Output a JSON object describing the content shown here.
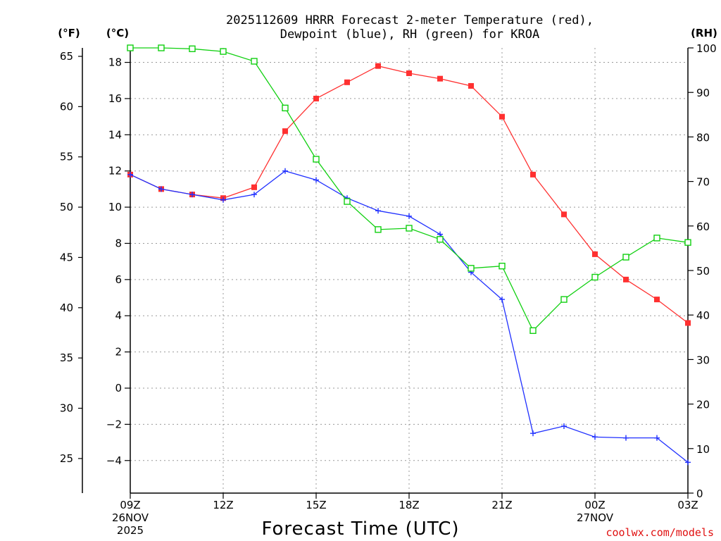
{
  "chart_data": {
    "type": "line",
    "title_line1": "2025112609 HRRR Forecast 2-meter Temperature (red),",
    "title_line2": "Dewpoint (blue), RH (green) for KROA",
    "xlabel": "Forecast Time (UTC)",
    "credit": "coolwx.com/models",
    "axis_heads": {
      "fahrenheit": "(°F)",
      "celsius": "(°C)",
      "rh": "(RH)"
    },
    "x_ticks": [
      {
        "hour": 0,
        "label": "09Z",
        "sub1": "26NOV",
        "sub2": "2025"
      },
      {
        "hour": 3,
        "label": "12Z"
      },
      {
        "hour": 6,
        "label": "15Z"
      },
      {
        "hour": 9,
        "label": "18Z"
      },
      {
        "hour": 12,
        "label": "21Z"
      },
      {
        "hour": 15,
        "label": "00Z",
        "sub1": "27NOV"
      },
      {
        "hour": 18,
        "label": "03Z"
      }
    ],
    "xlim": [
      0,
      18
    ],
    "celsius_range": [
      -5.8,
      18.8
    ],
    "celsius_ticks": [
      "−4",
      "−2",
      "0",
      "2",
      "4",
      "6",
      "8",
      "10",
      "12",
      "14",
      "16",
      "18"
    ],
    "celsius_tick_values": [
      -4,
      -2,
      0,
      2,
      4,
      6,
      8,
      10,
      12,
      14,
      16,
      18
    ],
    "fahrenheit_ticks": [
      "25",
      "30",
      "35",
      "40",
      "45",
      "50",
      "55",
      "60",
      "65"
    ],
    "fahrenheit_tick_values": [
      25,
      30,
      35,
      40,
      45,
      50,
      55,
      60,
      65
    ],
    "rh_range": [
      0,
      100
    ],
    "rh_ticks": [
      "0",
      "10",
      "20",
      "30",
      "40",
      "50",
      "60",
      "70",
      "80",
      "90",
      "100"
    ],
    "rh_tick_values": [
      0,
      10,
      20,
      30,
      40,
      50,
      60,
      70,
      80,
      90,
      100
    ],
    "series": [
      {
        "name": "2-meter Temperature",
        "unit": "C",
        "color": "#ff3030",
        "marker": "filled-square",
        "values": [
          11.8,
          11.0,
          10.7,
          10.5,
          11.1,
          14.2,
          16.0,
          16.9,
          17.8,
          17.4,
          17.1,
          16.7,
          15.0,
          11.8,
          9.6,
          7.4,
          6.0,
          4.9,
          3.6
        ]
      },
      {
        "name": "Dewpoint",
        "unit": "C",
        "color": "#2030ff",
        "marker": "plus",
        "values": [
          11.8,
          11.0,
          10.7,
          10.4,
          10.7,
          12.0,
          11.5,
          10.5,
          9.8,
          9.5,
          8.5,
          6.4,
          4.9,
          -2.5,
          -2.1,
          -2.7,
          -2.75,
          -2.75,
          -4.1
        ]
      },
      {
        "name": "RH",
        "unit": "%",
        "color": "#10d010",
        "marker": "open-square",
        "values": [
          100,
          100,
          99.8,
          99.2,
          97,
          86.5,
          75,
          65.5,
          59.2,
          59.5,
          57,
          50.5,
          51,
          36.5,
          43.5,
          48.5,
          53,
          57.3,
          56.3
        ]
      }
    ]
  }
}
